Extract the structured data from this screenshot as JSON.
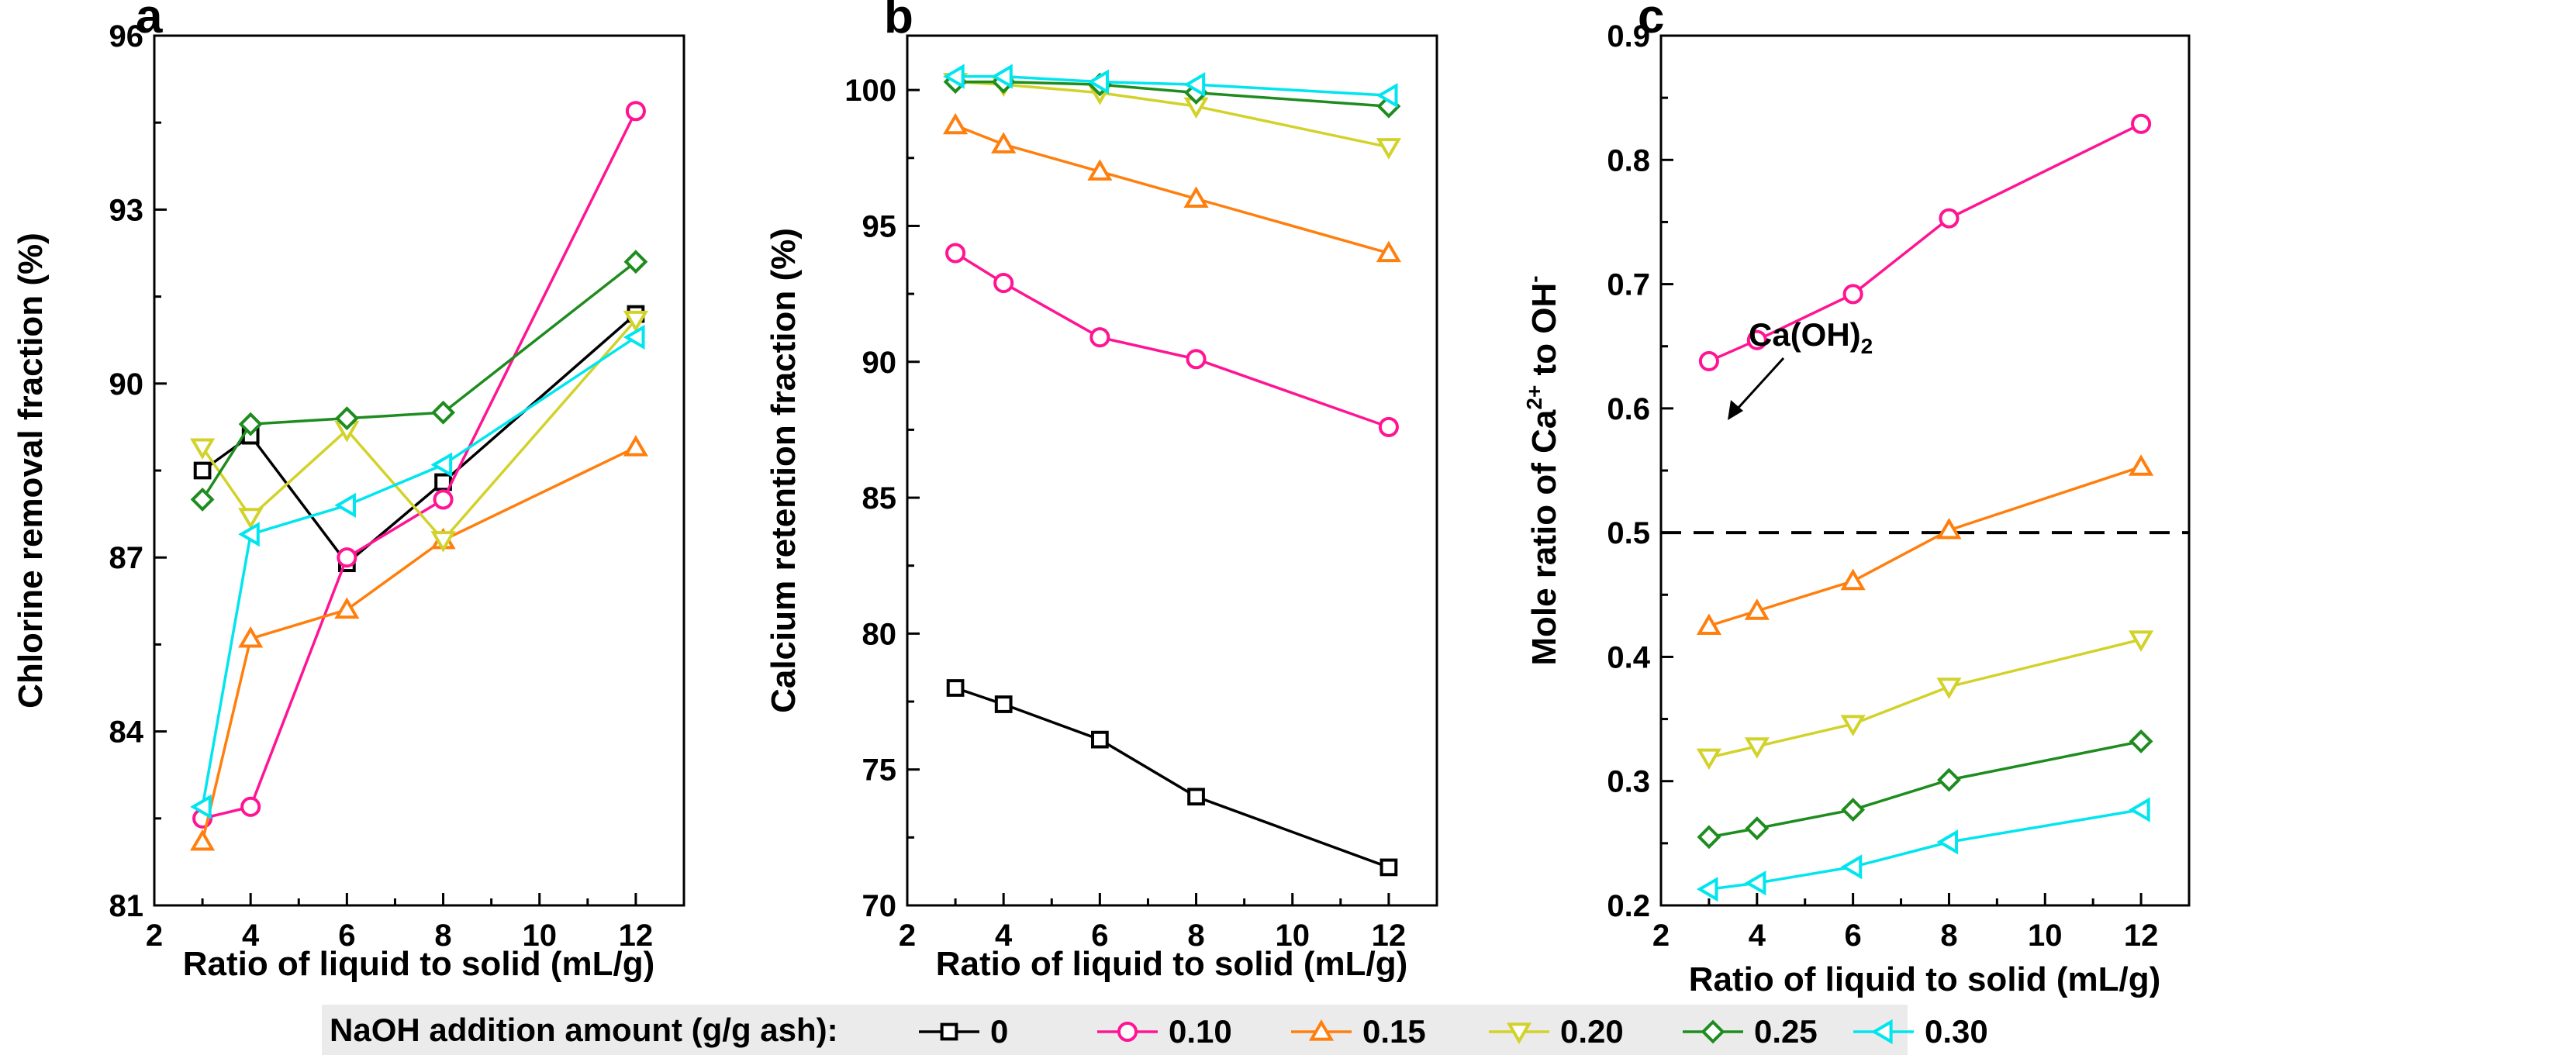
{
  "legend": {
    "title": "NaOH addition amount (g/g ash):",
    "entries": [
      {
        "label": "0",
        "color": "#000000",
        "marker": "square"
      },
      {
        "label": "0.10",
        "color": "#ff1493",
        "marker": "circle"
      },
      {
        "label": "0.15",
        "color": "#ff7f0e",
        "marker": "triangle-up"
      },
      {
        "label": "0.20",
        "color": "#d2d22a",
        "marker": "triangle-down"
      },
      {
        "label": "0.25",
        "color": "#1e8c1e",
        "marker": "diamond"
      },
      {
        "label": "0.30",
        "color": "#00e5ee",
        "marker": "triangle-left"
      }
    ]
  },
  "chart_data": [
    {
      "type": "line",
      "panel": "a",
      "xlabel": "Ratio of liquid to solid (mL/g)",
      "ylabel": "Chlorine removal fraction (%)",
      "xlim": [
        2,
        13
      ],
      "ylim": [
        81,
        96
      ],
      "xticks": [
        2,
        4,
        6,
        8,
        10,
        12
      ],
      "yticks": [
        81,
        84,
        87,
        90,
        93,
        96
      ],
      "x": [
        3,
        4,
        6,
        8,
        12
      ],
      "series": [
        {
          "name": "0",
          "values": [
            88.5,
            89.1,
            86.9,
            88.3,
            91.2
          ]
        },
        {
          "name": "0.10",
          "values": [
            82.5,
            82.7,
            87.0,
            88.0,
            94.7
          ]
        },
        {
          "name": "0.15",
          "values": [
            82.1,
            85.6,
            86.1,
            87.3,
            88.9
          ]
        },
        {
          "name": "0.20",
          "values": [
            88.9,
            87.7,
            89.2,
            87.3,
            91.1
          ]
        },
        {
          "name": "0.25",
          "values": [
            88.0,
            89.3,
            89.4,
            89.5,
            92.1
          ]
        },
        {
          "name": "0.30",
          "values": [
            82.7,
            87.4,
            87.9,
            88.6,
            90.8
          ]
        }
      ]
    },
    {
      "type": "line",
      "panel": "b",
      "xlabel": "Ratio of liquid to solid (mL/g)",
      "ylabel": "Calcium retention fraction (%)",
      "xlim": [
        2,
        13
      ],
      "ylim": [
        70,
        102
      ],
      "xticks": [
        2,
        4,
        6,
        8,
        10,
        12
      ],
      "yticks": [
        70,
        75,
        80,
        85,
        90,
        95,
        100
      ],
      "x": [
        3,
        4,
        6,
        8,
        12
      ],
      "series": [
        {
          "name": "0",
          "values": [
            78.0,
            77.4,
            76.1,
            74.0,
            71.4
          ]
        },
        {
          "name": "0.10",
          "values": [
            94.0,
            92.9,
            90.9,
            90.1,
            87.6
          ]
        },
        {
          "name": "0.15",
          "values": [
            98.7,
            98.0,
            97.0,
            96.0,
            94.0
          ]
        },
        {
          "name": "0.20",
          "values": [
            100.3,
            100.2,
            99.9,
            99.4,
            97.9
          ]
        },
        {
          "name": "0.25",
          "values": [
            100.3,
            100.3,
            100.2,
            99.9,
            99.4
          ]
        },
        {
          "name": "0.30",
          "values": [
            100.5,
            100.5,
            100.3,
            100.2,
            99.8
          ]
        }
      ]
    },
    {
      "type": "line",
      "panel": "c",
      "xlabel": "Ratio of liquid to solid (mL/g)",
      "ylabel_parts": [
        "Mole ratio of Ca",
        "2+",
        " to OH",
        "-"
      ],
      "xlim": [
        2,
        13
      ],
      "ylim": [
        0.2,
        0.9
      ],
      "xticks": [
        2,
        4,
        6,
        8,
        10,
        12
      ],
      "yticks": [
        0.2,
        0.3,
        0.4,
        0.5,
        0.6,
        0.7,
        0.8,
        0.9
      ],
      "x": [
        3,
        4,
        6,
        8,
        12
      ],
      "reference_line": {
        "y": 0.5,
        "style": "dashed",
        "annotation_parts": [
          "Ca(OH)",
          "2"
        ]
      },
      "series": [
        {
          "name": "0.10",
          "values": [
            0.638,
            0.655,
            0.692,
            0.753,
            0.829
          ]
        },
        {
          "name": "0.15",
          "values": [
            0.425,
            0.437,
            0.461,
            0.502,
            0.553
          ]
        },
        {
          "name": "0.20",
          "values": [
            0.319,
            0.328,
            0.346,
            0.376,
            0.414
          ]
        },
        {
          "name": "0.25",
          "values": [
            0.255,
            0.262,
            0.277,
            0.301,
            0.332
          ]
        },
        {
          "name": "0.30",
          "values": [
            0.213,
            0.218,
            0.231,
            0.251,
            0.277
          ]
        }
      ]
    }
  ]
}
